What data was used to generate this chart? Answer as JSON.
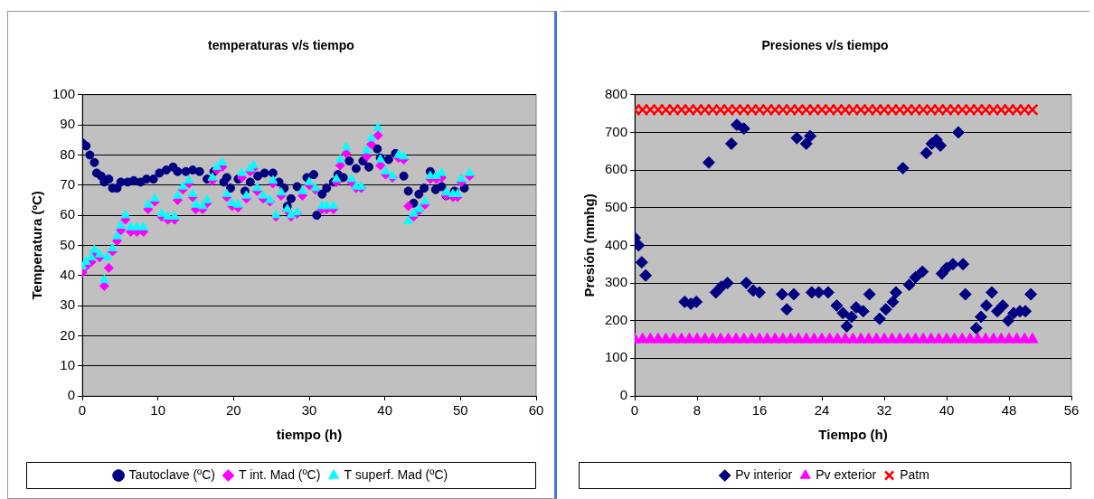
{
  "chart_data": [
    {
      "type": "scatter",
      "title": "temperaturas v/s tiempo",
      "xlabel": "tiempo (h)",
      "ylabel": "Temperatura (ºC)",
      "xlim": [
        0,
        60
      ],
      "xticks": [
        0,
        10,
        20,
        30,
        40,
        50,
        60
      ],
      "ylim": [
        0,
        100
      ],
      "yticks": [
        0,
        10,
        20,
        30,
        40,
        50,
        60,
        70,
        80,
        90,
        100
      ],
      "grid": "y",
      "legend": "bottom",
      "series": [
        {
          "name": "Tautoclave (ºC)",
          "color": "#000080",
          "marker": "circle",
          "x": [
            0,
            0.5,
            1,
            1.6,
            1.9,
            2.5,
            2.9,
            3.5,
            4,
            4.6,
            5.1,
            6,
            6.8,
            7.7,
            8.5,
            9.4,
            10.2,
            11.1,
            12,
            12.6,
            13.7,
            14.6,
            15.5,
            16.5,
            17.4,
            18.7,
            19.1,
            19.6,
            20.6,
            21.5,
            22.2,
            23.2,
            24.1,
            25.2,
            26,
            26.7,
            27.1,
            27.6,
            28.4,
            29.7,
            30.6,
            31,
            31.7,
            32.3,
            33.2,
            33.8,
            34.5,
            35.3,
            36.2,
            37.1,
            37.9,
            39,
            39.4,
            40.5,
            41.4,
            42.5,
            43.1,
            43.8,
            44.5,
            45.2,
            46,
            46.7,
            47.5,
            48.1,
            49.2,
            50.5
          ],
          "values": [
            84,
            83,
            80,
            77.5,
            74,
            73,
            71,
            72,
            69,
            69,
            71,
            71,
            71.5,
            71,
            72,
            72,
            74,
            75,
            76,
            74.5,
            74.5,
            75,
            74.5,
            72,
            74.5,
            71,
            72.5,
            69,
            72,
            68,
            71,
            73,
            74,
            74,
            71,
            69,
            63,
            65.5,
            69.5,
            72.5,
            73.5,
            60,
            67,
            69,
            71,
            73.5,
            72.5,
            78,
            75.5,
            78,
            76,
            82,
            79,
            78.5,
            80.5,
            73,
            68,
            64,
            67,
            69,
            74.5,
            68.5,
            69.5,
            66.5,
            68,
            69
          ]
        },
        {
          "name": "T int. Mad (ºC)",
          "color": "#ff00ff",
          "marker": "diamond",
          "x": [
            0,
            0.5,
            1.2,
            1.6,
            2.3,
            2.9,
            3.5,
            4,
            4.6,
            5.1,
            5.7,
            6.4,
            7.2,
            8.1,
            8.7,
            9.6,
            10.5,
            11.3,
            12.2,
            12.6,
            13.3,
            14.1,
            14.6,
            15,
            15.9,
            16.5,
            17.2,
            17.8,
            18.5,
            19.1,
            19.8,
            20.6,
            21.1,
            21.7,
            22.2,
            22.6,
            23.1,
            23.9,
            24.8,
            25.2,
            25.6,
            26.3,
            27.1,
            27.6,
            28.4,
            29.1,
            30,
            30.8,
            31.7,
            32.3,
            33.2,
            33.6,
            34.1,
            34.9,
            35.6,
            36.2,
            36.9,
            37.6,
            38.2,
            39.1,
            39.4,
            40.1,
            41,
            41.8,
            42.5,
            43.1,
            43.8,
            44.5,
            45.3,
            46,
            46.8,
            47.5,
            48.1,
            49,
            49.6,
            50.1,
            51.2
          ],
          "values": [
            41,
            43,
            44.5,
            47,
            46,
            36.5,
            42.5,
            48,
            51.5,
            55,
            58.5,
            54.5,
            54.5,
            54.5,
            62,
            64.5,
            59.5,
            58.5,
            58.5,
            65,
            68.5,
            70.5,
            66,
            62,
            62,
            64,
            71.5,
            75,
            76,
            66,
            63,
            62.5,
            72.5,
            65.5,
            74.5,
            75.5,
            68,
            65.5,
            64.5,
            70.5,
            59.5,
            66.5,
            61.5,
            59.5,
            60.5,
            66.5,
            70,
            68.5,
            62,
            62,
            62,
            71,
            76.5,
            80.5,
            71,
            69,
            69,
            79.5,
            83.5,
            86.5,
            76.5,
            73.5,
            72.5,
            79,
            78.5,
            63,
            59.5,
            61.5,
            63.5,
            72,
            72,
            72.5,
            66.5,
            66,
            66,
            71,
            73
          ]
        },
        {
          "name": "T superf. Mad (ºC)",
          "color": "#00ffff",
          "marker": "triangle",
          "x": [
            0,
            0.5,
            1.2,
            1.6,
            2.3,
            2.9,
            3.3,
            4,
            4.6,
            5.1,
            5.7,
            6.4,
            7.2,
            8.1,
            8.7,
            9.6,
            10.5,
            11.3,
            12.2,
            12.6,
            13.3,
            14.1,
            14.6,
            15,
            15.9,
            16.5,
            17.2,
            17.8,
            18.5,
            19.1,
            19.8,
            20.6,
            21.1,
            21.7,
            22.2,
            22.6,
            23.1,
            23.9,
            24.8,
            25.2,
            25.6,
            26.3,
            27.1,
            27.6,
            28.4,
            29.1,
            30,
            30.8,
            31.7,
            32.3,
            33.2,
            33.6,
            34.1,
            34.9,
            35.6,
            36.2,
            36.9,
            37.6,
            38.2,
            39.1,
            39.4,
            40.1,
            41,
            41.8,
            42.5,
            43.1,
            43.8,
            44.5,
            45.3,
            46,
            46.8,
            47.5,
            48.1,
            49,
            49.6,
            50.1,
            51.2
          ],
          "values": [
            43,
            44.5,
            46,
            48.5,
            47,
            38.5,
            46,
            49,
            53,
            56.5,
            60,
            56,
            56,
            56,
            63.5,
            65.5,
            60.5,
            59.5,
            59.5,
            66.5,
            69.5,
            71.5,
            67,
            63.5,
            63,
            65,
            72.5,
            76,
            77.5,
            67,
            64,
            63.5,
            74,
            66.5,
            75.5,
            76.5,
            69,
            66.5,
            65,
            71.5,
            60,
            67.5,
            62,
            60,
            61,
            68,
            71,
            69,
            63,
            63,
            63,
            72,
            78.5,
            82.5,
            72,
            69.5,
            69.5,
            81.5,
            85.5,
            89,
            78.5,
            74.5,
            73,
            80,
            79.5,
            58,
            60.5,
            62,
            64.5,
            73,
            73,
            74,
            67.5,
            67,
            67,
            72,
            74
          ]
        }
      ]
    },
    {
      "type": "scatter",
      "title": "Presiones v/s tiempo",
      "xlabel": "Tiempo (h)",
      "ylabel": "Presión (mmhg)",
      "xlim": [
        0,
        56
      ],
      "xticks": [
        0,
        8,
        16,
        24,
        32,
        40,
        48,
        56
      ],
      "ylim": [
        0,
        800
      ],
      "yticks": [
        0,
        100,
        200,
        300,
        400,
        500,
        600,
        700,
        800
      ],
      "grid": "y",
      "legend": "bottom",
      "series": [
        {
          "name": "Pv interior",
          "color": "#000080",
          "marker": "diamond",
          "x": [
            0,
            0.5,
            0.9,
            1.4,
            6.4,
            7.2,
            7.9,
            9.5,
            10.4,
            11.1,
            11.9,
            12.4,
            13.1,
            14,
            14.3,
            15.2,
            16,
            18.9,
            19.5,
            20.4,
            20.8,
            22,
            22.5,
            22.7,
            23.6,
            24.8,
            25.9,
            26.7,
            27.2,
            27.8,
            28.4,
            29.3,
            30.1,
            31.4,
            32.2,
            33.1,
            33.5,
            34.4,
            35.2,
            36,
            36.9,
            37.4,
            38.1,
            38.7,
            39.2,
            39.4,
            40,
            40.8,
            41.5,
            42.1,
            42.4,
            43.8,
            44.4,
            45.1,
            45.8,
            46.5,
            47.2,
            47.9,
            48.6,
            49.4,
            50.1,
            50.8
          ],
          "values": [
            420,
            400,
            355,
            320,
            250,
            245,
            250,
            620,
            275,
            290,
            300,
            670,
            720,
            710,
            300,
            280,
            275,
            270,
            230,
            270,
            685,
            670,
            690,
            275,
            275,
            275,
            240,
            220,
            185,
            210,
            235,
            225,
            270,
            205,
            230,
            250,
            275,
            605,
            295,
            315,
            330,
            645,
            670,
            680,
            665,
            325,
            340,
            350,
            700,
            350,
            270,
            180,
            210,
            240,
            275,
            225,
            240,
            200,
            220,
            225,
            225,
            270
          ]
        },
        {
          "name": "Pv exterior",
          "color": "#ff00ff",
          "marker": "triangle",
          "x": [
            0,
            1,
            2,
            3,
            4,
            5,
            6,
            7,
            8,
            9,
            10,
            11,
            12,
            13,
            14,
            15,
            16,
            17,
            18,
            19,
            20,
            21,
            22,
            23,
            24,
            25,
            26,
            27,
            28,
            29,
            30,
            31,
            32,
            33,
            34,
            35,
            36,
            37,
            38,
            39,
            40,
            41,
            42,
            43,
            44,
            45,
            46,
            47,
            48,
            49,
            50,
            51
          ],
          "values": [
            150,
            150,
            150,
            150,
            150,
            150,
            150,
            150,
            150,
            150,
            150,
            150,
            150,
            150,
            150,
            150,
            150,
            150,
            150,
            150,
            150,
            150,
            150,
            150,
            150,
            150,
            150,
            150,
            150,
            150,
            150,
            150,
            150,
            150,
            150,
            150,
            150,
            150,
            150,
            150,
            150,
            150,
            150,
            150,
            150,
            150,
            150,
            150,
            150,
            150,
            150,
            150
          ]
        },
        {
          "name": "Patm",
          "color": "#ff0000",
          "marker": "cross",
          "x": [
            0,
            1,
            2,
            3,
            4,
            5,
            6,
            7,
            8,
            9,
            10,
            11,
            12,
            13,
            14,
            15,
            16,
            17,
            18,
            19,
            20,
            21,
            22,
            23,
            24,
            25,
            26,
            27,
            28,
            29,
            30,
            31,
            32,
            33,
            34,
            35,
            36,
            37,
            38,
            39,
            40,
            41,
            42,
            43,
            44,
            45,
            46,
            47,
            48,
            49,
            50,
            51
          ],
          "values": [
            760,
            760,
            760,
            760,
            760,
            760,
            760,
            760,
            760,
            760,
            760,
            760,
            760,
            760,
            760,
            760,
            760,
            760,
            760,
            760,
            760,
            760,
            760,
            760,
            760,
            760,
            760,
            760,
            760,
            760,
            760,
            760,
            760,
            760,
            760,
            760,
            760,
            760,
            760,
            760,
            760,
            760,
            760,
            760,
            760,
            760,
            760,
            760,
            760,
            760,
            760,
            760
          ]
        }
      ]
    }
  ]
}
